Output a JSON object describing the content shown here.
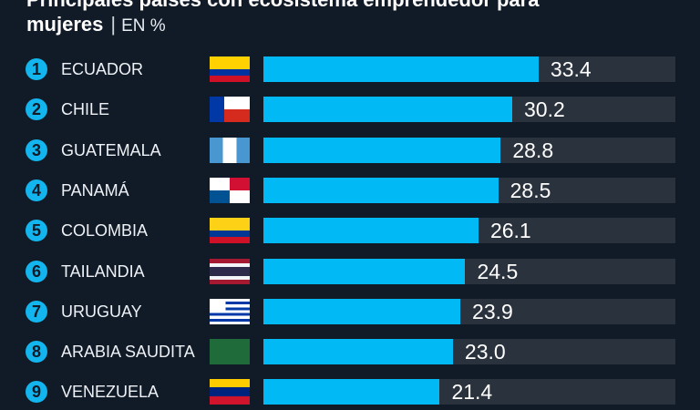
{
  "header": {
    "title_line1": "Principales países con ecosistema emprendedor para",
    "title_line2": "mujeres",
    "separator": "|",
    "unit": "EN %"
  },
  "colors": {
    "background": "#111a27",
    "bar": "#00b9f5",
    "track": "#2a323e",
    "rank_badge": "#12b5ee"
  },
  "chart_data": {
    "type": "bar",
    "orientation": "horizontal",
    "title": "Principales países con ecosistema emprendedor para mujeres",
    "unit": "EN %",
    "xlim": [
      0,
      50
    ],
    "grid": false,
    "categories": [
      "ECUADOR",
      "CHILE",
      "GUATEMALA",
      "PANAMÁ",
      "COLOMBIA",
      "TAILANDIA",
      "URUGUAY",
      "ARABIA SAUDITA",
      "VENEZUELA"
    ],
    "ranks": [
      "1",
      "2",
      "3",
      "4",
      "5",
      "6",
      "7",
      "8",
      "9"
    ],
    "values": [
      33.4,
      30.2,
      28.8,
      28.5,
      26.1,
      24.5,
      23.9,
      23.0,
      21.4
    ],
    "labels": [
      "33.4",
      "30.2",
      "28.8",
      "28.5",
      "26.1",
      "24.5",
      "23.9",
      "23.0",
      "21.4"
    ],
    "flags": [
      "ecuador-flag",
      "chile-flag",
      "guatemala-flag",
      "panama-flag",
      "colombia-flag",
      "thailand-flag",
      "uruguay-flag",
      "saudi-arabia-flag",
      "venezuela-flag"
    ]
  }
}
